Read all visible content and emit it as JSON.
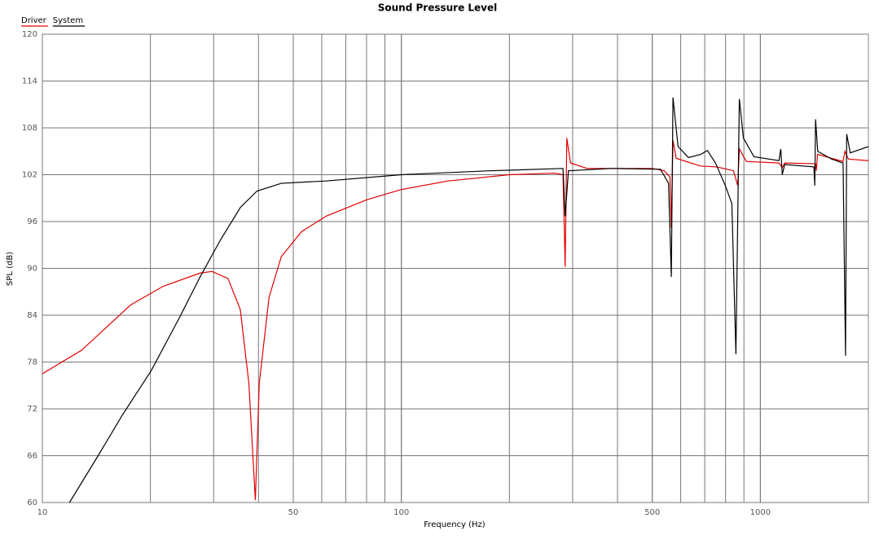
{
  "chart_data": {
    "type": "line",
    "title": "Sound Pressure Level",
    "x_label": "Frequency (Hz)",
    "y_label": "SPL (dB)",
    "x_log": true,
    "grid": true,
    "legend": "top-left",
    "xlim": [
      10,
      2000
    ],
    "ylim": [
      60,
      120
    ],
    "xticks": [
      10,
      50,
      100,
      500,
      1000
    ],
    "yticks": [
      60,
      66,
      72,
      78,
      84,
      90,
      96,
      102,
      108,
      114,
      120
    ],
    "series": [
      {
        "name": "Driver",
        "color": "#e00000",
        "x": [
          10,
          12.85,
          17.6,
          21.7,
          27.5,
          29.7,
          32.9,
          35.6,
          37.6,
          39.2,
          40.2,
          42.8,
          46.3,
          52.7,
          61.8,
          80.2,
          100,
          135,
          200,
          267,
          282,
          286,
          289,
          296,
          329,
          500,
          540,
          560,
          565,
          571,
          583,
          682,
          757,
          842,
          865,
          874,
          914,
          1127,
          1151,
          1169,
          1425,
          1432,
          1443,
          1668,
          1700,
          1720,
          1760,
          2000
        ],
        "values": [
          76.5,
          79.5,
          85.3,
          87.7,
          89.4,
          89.6,
          88.7,
          84.7,
          75.3,
          60.3,
          75.3,
          86.3,
          91.5,
          94.7,
          96.7,
          98.8,
          100.1,
          101.2,
          102,
          102.2,
          102,
          90.2,
          106.7,
          103.5,
          102.8,
          102.8,
          102.5,
          101.7,
          95.2,
          106.4,
          104.1,
          103.1,
          103,
          102.5,
          100.6,
          105.3,
          103.7,
          103.5,
          102.9,
          103.5,
          103.4,
          102.5,
          104.6,
          103.8,
          103.7,
          105,
          104,
          103.8
        ]
      },
      {
        "name": "System",
        "color": "#000000",
        "x": [
          11.9,
          14.3,
          16.7,
          20.1,
          24.1,
          27.5,
          31.3,
          35.6,
          39.6,
          46.3,
          61.8,
          100,
          176,
          282,
          286,
          292,
          386,
          527,
          555,
          565,
          571,
          590,
          631,
          682,
          712,
          750,
          799,
          833,
          855,
          874,
          897,
          960,
          1127,
          1140,
          1151,
          1169,
          1410,
          1418,
          1425,
          1445,
          1580,
          1700,
          1727,
          1740,
          1780,
          2000
        ],
        "values": [
          60,
          66,
          71.2,
          76.9,
          83.7,
          88.9,
          93.6,
          97.8,
          99.9,
          100.9,
          101.2,
          102,
          102.5,
          102.8,
          96.7,
          102.5,
          102.8,
          102.7,
          100.9,
          88.9,
          111.9,
          105.6,
          104.2,
          104.6,
          105.1,
          103.5,
          100.6,
          98.3,
          79,
          111.7,
          106.7,
          104.3,
          103.8,
          105.3,
          102,
          103.3,
          103,
          100.6,
          109.1,
          105,
          104,
          103.5,
          78.8,
          107.2,
          104.8,
          105.6
        ]
      }
    ]
  }
}
